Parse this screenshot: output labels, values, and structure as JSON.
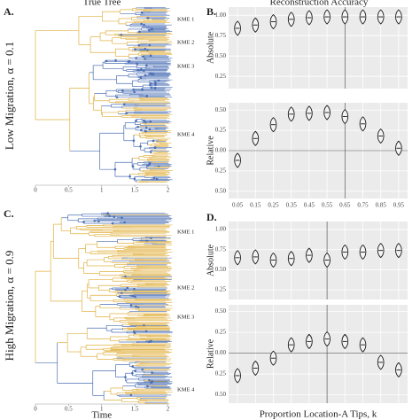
{
  "labels": {
    "a": "A.",
    "b": "B.",
    "c": "C.",
    "d": "D."
  },
  "tree_title": "True Tree",
  "accuracy_title": "Reconstruction Accuracy",
  "rows": [
    "Low Migration, α = 0.1",
    "High Migration, α = 0.9"
  ],
  "kme": [
    "KME 1",
    "KME 2",
    "KME 3",
    "KME 4"
  ],
  "tree_axis": {
    "xlim": [
      0,
      2.1
    ],
    "xticks": [
      0,
      0.5,
      1,
      1.5,
      2
    ],
    "xlabel": "Time"
  },
  "chart_data": [
    {
      "type": "violin",
      "ylabel": "Absolute",
      "x": [
        0.05,
        0.15,
        0.25,
        0.35,
        0.45,
        0.55,
        0.65,
        0.75,
        0.85,
        0.95
      ],
      "values": [
        0.84,
        0.88,
        0.92,
        0.95,
        0.97,
        0.98,
        0.98,
        0.98,
        0.98,
        0.98
      ],
      "xlim": [
        0,
        1
      ],
      "xticks": [
        0.05,
        0.15,
        0.25,
        0.35,
        0.45,
        0.55,
        0.65,
        0.75,
        0.85,
        0.95
      ],
      "ylim": [
        0.1,
        1.1
      ],
      "yticks": [
        0.25,
        {
          "value": 0.5,
          "label": "0.50"
        },
        0.75,
        {
          "value": 1,
          "label": "1.00"
        }
      ],
      "vline": 0.65,
      "color": "#1a1a1a"
    },
    {
      "type": "violin",
      "ylabel": "Relative",
      "x": [
        0.05,
        0.15,
        0.25,
        0.35,
        0.45,
        0.55,
        0.65,
        0.75,
        0.85,
        0.95
      ],
      "values": [
        -0.12,
        0.15,
        0.32,
        0.45,
        0.46,
        0.47,
        0.42,
        0.33,
        0.18,
        0.03
      ],
      "xlim": [
        0,
        1
      ],
      "xticks": [
        0.05,
        0.15,
        0.25,
        0.35,
        0.45,
        0.55,
        0.65,
        0.75,
        0.85,
        0.95
      ],
      "xtick_labels": true,
      "ylim": [
        -0.59,
        0.59
      ],
      "yticks": [
        {
          "value": 0.5,
          "label": "0.50"
        },
        0.25,
        {
          "value": 0,
          "label": "0.00"
        },
        {
          "value": -0.25,
          "label": "0.25"
        },
        {
          "value": -0.5,
          "label": "0.50"
        }
      ],
      "vline": 0.65,
      "hline": 0,
      "color": "#1a1a1a"
    },
    {
      "type": "violin",
      "ylabel": "Absolute",
      "x": [
        0.05,
        0.15,
        0.25,
        0.35,
        0.45,
        0.55,
        0.65,
        0.75,
        0.85,
        0.95
      ],
      "values": [
        0.65,
        0.66,
        0.62,
        0.64,
        0.68,
        0.62,
        0.72,
        0.72,
        0.74,
        0.74
      ],
      "xlim": [
        0,
        1
      ],
      "xticks": [
        0.05,
        0.15,
        0.25,
        0.35,
        0.45,
        0.55,
        0.65,
        0.75,
        0.85,
        0.95
      ],
      "ylim": [
        0.13,
        1.1
      ],
      "yticks": [
        0.25,
        {
          "value": 0.5,
          "label": "0.50"
        },
        0.75,
        {
          "value": 1,
          "label": "1.00"
        }
      ],
      "vline": 0.55,
      "color": "#1a1a1a"
    },
    {
      "type": "violin",
      "ylabel": "Relative",
      "x": [
        0.05,
        0.15,
        0.25,
        0.35,
        0.45,
        0.55,
        0.65,
        0.75,
        0.85,
        0.95
      ],
      "values": [
        -0.27,
        -0.18,
        -0.06,
        0.1,
        0.14,
        0.17,
        0.14,
        0.1,
        -0.11,
        -0.2
      ],
      "xlim": [
        0,
        1
      ],
      "xticks": [
        0.05,
        0.15,
        0.25,
        0.35,
        0.45,
        0.55,
        0.65,
        0.75,
        0.85,
        0.95
      ],
      "ylim": [
        -0.6,
        0.58
      ],
      "yticks": [
        {
          "value": 0.5,
          "label": "0.50"
        },
        0.25,
        {
          "value": 0,
          "label": "0.00"
        },
        {
          "value": -0.25,
          "label": "0.25"
        },
        {
          "value": -0.5,
          "label": "0.50"
        }
      ],
      "vline": 0.55,
      "hline": 0,
      "color": "#1a1a1a",
      "xlabel": "Proportion Location-A Tips, k"
    }
  ]
}
